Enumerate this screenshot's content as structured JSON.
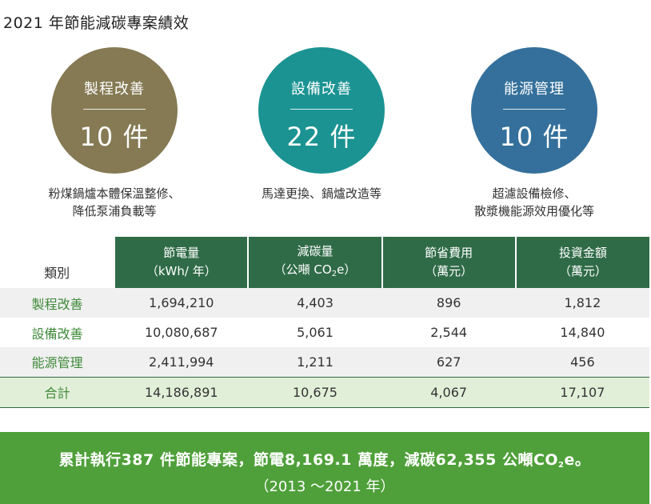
{
  "title": "2021 年節能減碳專案績效",
  "colors": {
    "circle1": "#857a53",
    "circle2": "#1b9392",
    "circle3": "#34709b",
    "header": "#2f6b47",
    "category_text": "#3f8a3a",
    "total_row": "#e2efd8",
    "banner": "#4fa03a"
  },
  "circles": [
    {
      "category": "製程改善",
      "count": "10 件",
      "desc_line1": "粉煤鍋爐本體保溫整修、",
      "desc_line2": "降低泵浦負載等"
    },
    {
      "category": "設備改善",
      "count": "22 件",
      "desc_line1": "馬達更換、鍋爐改造等",
      "desc_line2": ""
    },
    {
      "category": "能源管理",
      "count": "10 件",
      "desc_line1": "超濾設備檢修、",
      "desc_line2": "散漿機能源效用優化等"
    }
  ],
  "table": {
    "header_category": "類別",
    "headers": [
      {
        "line1": "節電量",
        "line2": "（kWh/ 年）"
      },
      {
        "line1": "減碳量",
        "line2a": "（公噸 CO",
        "line2_sub": "2",
        "line2b": "e）"
      },
      {
        "line1": "節省費用",
        "line2": "（萬元）"
      },
      {
        "line1": "投資金額",
        "line2": "（萬元）"
      }
    ],
    "rows": [
      {
        "category": "製程改善",
        "values": [
          "1,694,210",
          "4,403",
          "896",
          "1,812"
        ]
      },
      {
        "category": "設備改善",
        "values": [
          "10,080,687",
          "5,061",
          "2,544",
          "14,840"
        ]
      },
      {
        "category": "能源管理",
        "values": [
          "2,411,994",
          "1,211",
          "627",
          "456"
        ]
      }
    ],
    "total": {
      "category": "合計",
      "values": [
        "14,186,891",
        "10,675",
        "4,067",
        "17,107"
      ]
    }
  },
  "banner": {
    "line1_a": "累計執行387 件節能專案，節電8,169.1 萬度，減碳62,355 公噸CO",
    "line1_sub": "2",
    "line1_b": "e。",
    "line2": "（2013 ～2021 年）"
  }
}
